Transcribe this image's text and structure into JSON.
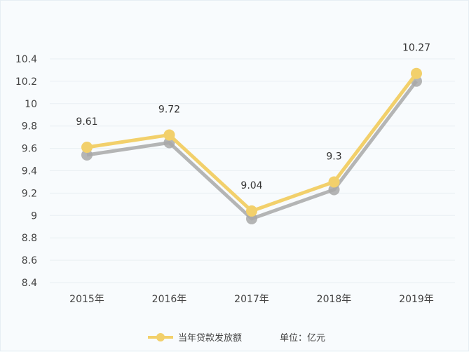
{
  "chart_data": {
    "type": "line",
    "categories": [
      "2015年",
      "2016年",
      "2017年",
      "2018年",
      "2019年"
    ],
    "series": [
      {
        "name": "当年贷款发放额",
        "values": [
          9.61,
          9.72,
          9.04,
          9.3,
          10.27
        ]
      }
    ],
    "data_labels": [
      "9.61",
      "9.72",
      "9.04",
      "9.3",
      "10.27"
    ],
    "ylim": [
      8.4,
      10.4
    ],
    "yticks": [
      "8.4",
      "8.6",
      "8.8",
      "9",
      "9.2",
      "9.4",
      "9.6",
      "9.8",
      "10",
      "10.2",
      "10.4"
    ],
    "grid": true,
    "legend_position": "bottom",
    "unit_label": "单位：亿元",
    "colors": {
      "line": "#f2d06b",
      "shadow": "#a8a8a8",
      "grid": "#e9eff3",
      "text": "#444444"
    }
  }
}
